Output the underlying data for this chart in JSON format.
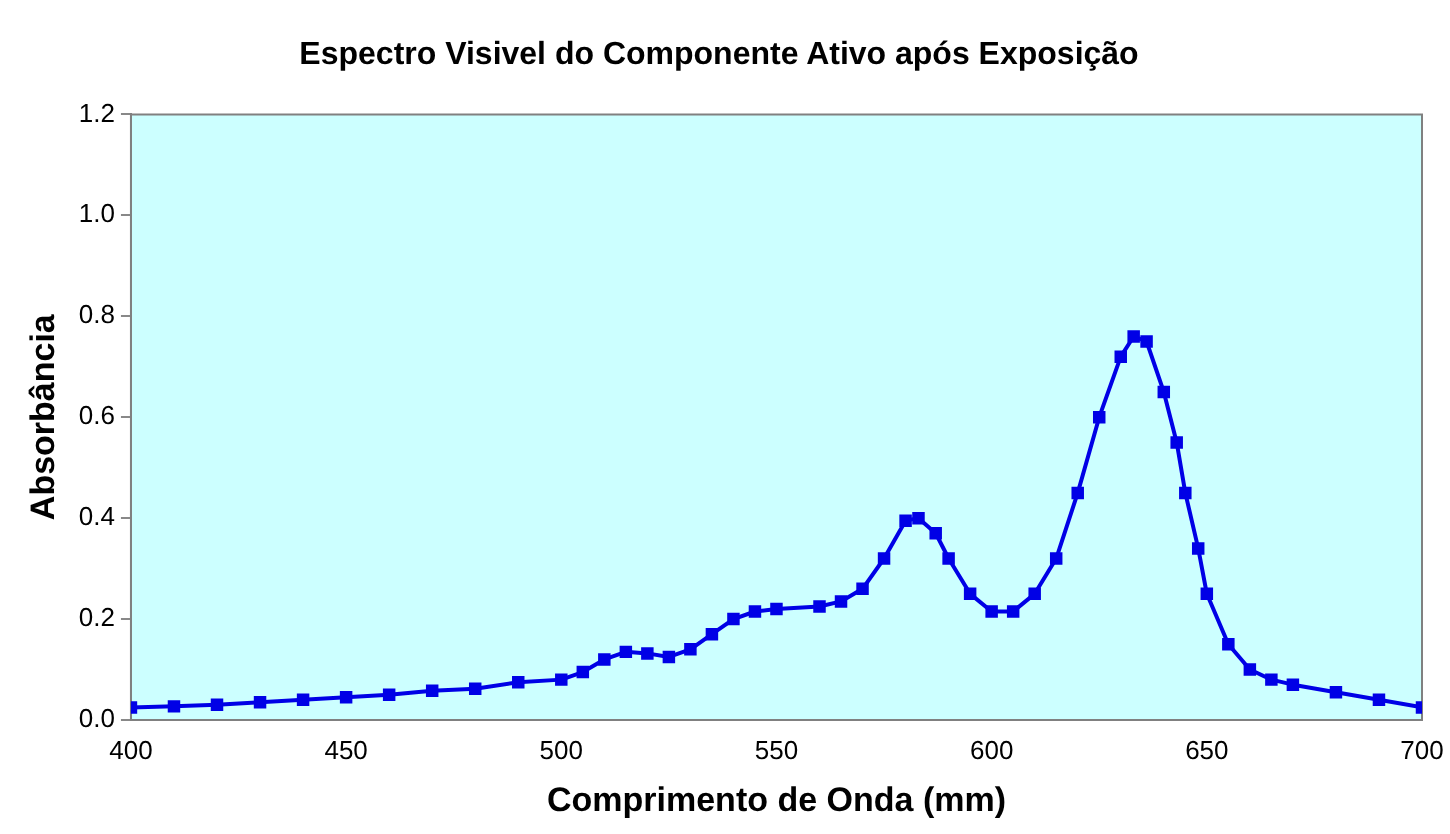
{
  "chart_data": {
    "type": "line",
    "title": "Espectro Visivel do Componente Ativo após Exposição",
    "xlabel": "Comprimento de Onda (mm)",
    "ylabel": "Absorbância",
    "marker": "square",
    "grid": false,
    "legend": false,
    "xlim": [
      400,
      700
    ],
    "xticks": [
      400,
      450,
      500,
      550,
      600,
      650,
      700
    ],
    "ylim": [
      0,
      1.2
    ],
    "yticks": [
      {
        "value": 0,
        "label": "0.0"
      },
      {
        "value": 0.2,
        "label": "0.2"
      },
      {
        "value": 0.4,
        "label": "0.4"
      },
      {
        "value": 0.6,
        "label": "0.6"
      },
      {
        "value": 0.8,
        "label": "0.8"
      },
      {
        "value": 1,
        "label": "1.0"
      },
      {
        "value": 1.2,
        "label": "1.2"
      }
    ],
    "x": [
      400,
      410,
      420,
      430,
      440,
      450,
      460,
      470,
      480,
      490,
      500,
      505,
      510,
      515,
      520,
      525,
      530,
      535,
      540,
      545,
      550,
      560,
      565,
      570,
      575,
      580,
      583,
      587,
      590,
      595,
      600,
      605,
      610,
      615,
      620,
      625,
      630,
      633,
      636,
      640,
      643,
      645,
      648,
      650,
      655,
      660,
      665,
      670,
      680,
      690,
      700
    ],
    "series": [
      {
        "color": "#0000e6",
        "values": [
          0.025,
          0.027,
          0.03,
          0.035,
          0.04,
          0.045,
          0.05,
          0.058,
          0.062,
          0.075,
          0.08,
          0.095,
          0.12,
          0.135,
          0.132,
          0.125,
          0.14,
          0.17,
          0.2,
          0.215,
          0.22,
          0.225,
          0.235,
          0.26,
          0.32,
          0.395,
          0.4,
          0.37,
          0.32,
          0.25,
          0.215,
          0.215,
          0.25,
          0.32,
          0.45,
          0.6,
          0.72,
          0.76,
          0.75,
          0.65,
          0.55,
          0.45,
          0.34,
          0.25,
          0.15,
          0.1,
          0.08,
          0.07,
          0.055,
          0.04,
          0.025
        ]
      }
    ]
  }
}
